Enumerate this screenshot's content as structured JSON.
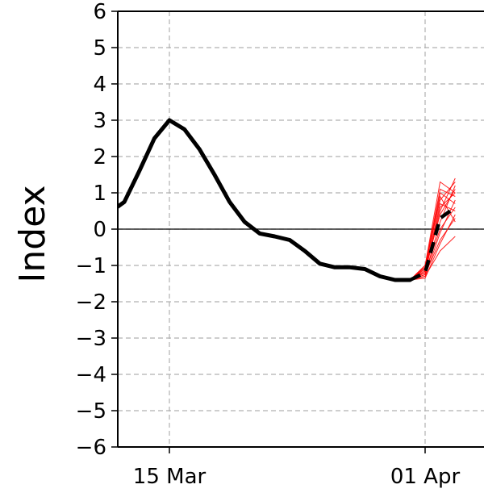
{
  "chart_data": {
    "type": "line",
    "xlabel": "",
    "ylabel": "Index",
    "ylim": [
      -6,
      6
    ],
    "xlim": [
      "2020-03-11",
      "2020-04-03"
    ],
    "yticks": [
      6,
      5,
      4,
      3,
      2,
      1,
      0,
      -1,
      -2,
      -3,
      -4,
      -5,
      -6
    ],
    "ytick_labels": [
      "6",
      "5",
      "4",
      "3",
      "2",
      "1",
      "0",
      "−1",
      "−2",
      "−3",
      "−4",
      "−5",
      "−6"
    ],
    "xticks": [
      "2020-03-15",
      "2020-04-01"
    ],
    "xtick_labels": [
      "15 Mar",
      "01 Apr"
    ],
    "grid": true,
    "zero_line": true,
    "colors": {
      "observed": "#000000",
      "ensemble": "#ff0000",
      "ensemble_mean": "#000000",
      "grid": "#b0b0b0"
    },
    "series": [
      {
        "style": "solid-black",
        "x": [
          "2020-03-11",
          "2020-03-12",
          "2020-03-13",
          "2020-03-14",
          "2020-03-15",
          "2020-03-16",
          "2020-03-17",
          "2020-03-18",
          "2020-03-19",
          "2020-03-20",
          "2020-03-21",
          "2020-03-22",
          "2020-03-23",
          "2020-03-24",
          "2020-03-25",
          "2020-03-26",
          "2020-03-27",
          "2020-03-28",
          "2020-03-29",
          "2020-03-30",
          "2020-03-31"
        ],
        "values": [
          0.45,
          0.75,
          1.6,
          2.5,
          3.0,
          2.75,
          2.2,
          1.5,
          0.75,
          0.2,
          -0.12,
          -0.2,
          -0.3,
          -0.6,
          -0.95,
          -1.05,
          -1.05,
          -1.1,
          -1.3,
          -1.4,
          -1.4
        ]
      },
      {
        "style": "dashed-black",
        "x": [
          "2020-03-31",
          "2020-04-01",
          "2020-04-02",
          "2020-04-03"
        ],
        "values": [
          -1.4,
          -1.2,
          0.3,
          0.6
        ]
      }
    ],
    "ensemble": {
      "style": "thin-red",
      "x": [
        "2020-03-31",
        "2020-04-01",
        "2020-04-02",
        "2020-04-03"
      ],
      "members": [
        [
          -1.4,
          -1.35,
          -0.4,
          0.4
        ],
        [
          -1.4,
          -1.3,
          -0.1,
          0.8
        ],
        [
          -1.4,
          -1.25,
          0.2,
          1.2
        ],
        [
          -1.4,
          -1.2,
          0.5,
          1.4
        ],
        [
          -1.4,
          -1.15,
          0.7,
          0.5
        ],
        [
          -1.4,
          -1.1,
          0.9,
          0.2
        ],
        [
          -1.4,
          -1.05,
          1.1,
          0.9
        ],
        [
          -1.4,
          -1.0,
          1.3,
          1.0
        ],
        [
          -1.4,
          -1.3,
          -0.6,
          -0.2
        ],
        [
          -1.4,
          -1.2,
          0.0,
          0.6
        ],
        [
          -1.4,
          -1.1,
          0.4,
          1.1
        ],
        [
          -1.4,
          -1.0,
          0.8,
          1.3
        ],
        [
          -1.4,
          -1.25,
          -0.3,
          0.3
        ],
        [
          -1.4,
          -1.15,
          0.6,
          1.0
        ],
        [
          -1.4,
          -1.05,
          1.0,
          0.7
        ]
      ]
    }
  }
}
